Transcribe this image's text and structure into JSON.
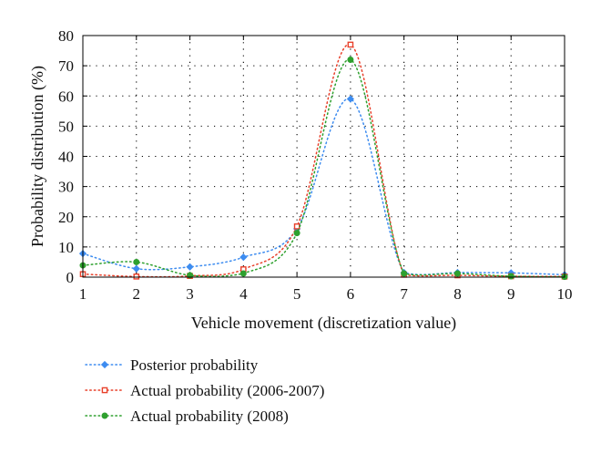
{
  "chart_data": {
    "type": "line",
    "title": "",
    "xlabel": "Vehicle movement (discretization value)",
    "ylabel": "Probability distribution (%)",
    "x": [
      1,
      2,
      3,
      4,
      5,
      6,
      7,
      8,
      9,
      10
    ],
    "xlim": [
      1,
      10
    ],
    "ylim": [
      0,
      80
    ],
    "xticks": [
      "1",
      "2",
      "3",
      "4",
      "5",
      "6",
      "7",
      "8",
      "9",
      "10"
    ],
    "yticks": [
      "0",
      "10",
      "20",
      "30",
      "40",
      "50",
      "60",
      "70",
      "80"
    ],
    "grid": true,
    "legend_placement": "below",
    "series": [
      {
        "name": "Posterior probability",
        "color": "#3d8cf0",
        "marker": "diamond",
        "values": [
          7.8,
          2.8,
          3.4,
          6.6,
          16.0,
          59.0,
          1.5,
          1.5,
          1.4,
          0.8
        ]
      },
      {
        "name": "Actual probability (2006-2007)",
        "color": "#e8402a",
        "marker": "square",
        "values": [
          1.0,
          0.2,
          0.4,
          2.6,
          16.8,
          77.0,
          0.8,
          0.6,
          0.3,
          0.2
        ]
      },
      {
        "name": "Actual probability (2008)",
        "color": "#2ea02e",
        "marker": "circle",
        "values": [
          3.9,
          5.0,
          0.6,
          1.2,
          14.6,
          72.0,
          1.2,
          1.2,
          0.3,
          0.1
        ]
      }
    ]
  }
}
